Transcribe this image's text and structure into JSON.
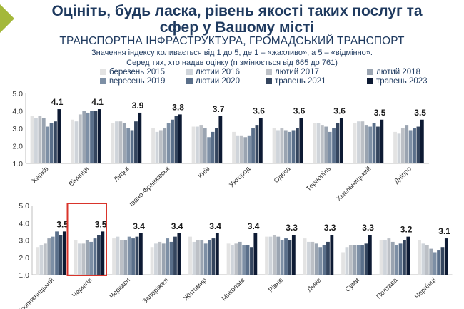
{
  "page": {
    "title": "Оцініть, будь ласка, рівень якості таких послуг та сфер у Вашому місті",
    "subtitle": "ТРАНСПОРТНА ІНФРАСТРУКТУРА, ГРОМАДСЬКИЙ ТРАНСПОРТ",
    "note_line1": "Значення індексу коливається від 1 до 5, де 1 – «жахливо», а 5 – «відмінно».",
    "note_line2": "Серед тих, хто надав оцінку (n змінюється від 665 до 761)",
    "accent_color": "#a4b83a",
    "highlight_color": "#d9342b"
  },
  "chart_data": {
    "type": "bar",
    "ylim": [
      1.0,
      5.0
    ],
    "yticks": [
      "1.0",
      "2.0",
      "3.0",
      "4.0",
      "5.0"
    ],
    "grid": false,
    "legend_position": "top",
    "highlighted_city": "Чернігів",
    "series": [
      {
        "name": "березень 2015",
        "color": "#e3e3e3"
      },
      {
        "name": "лютий 2016",
        "color": "#cfd4da"
      },
      {
        "name": "лютий 2017",
        "color": "#bcc0c6"
      },
      {
        "name": "лютий 2018",
        "color": "#9aa4b1"
      },
      {
        "name": "вересень 2019",
        "color": "#7d8fa5"
      },
      {
        "name": "лютий 2020",
        "color": "#5a6f8a"
      },
      {
        "name": "травень 2021",
        "color": "#34455e"
      },
      {
        "name": "травень 2023",
        "color": "#0d1a33"
      }
    ],
    "rows": [
      {
        "cities": [
          {
            "name": "Харків",
            "label": "4.1",
            "values": [
              3.7,
              3.6,
              3.7,
              3.6,
              3.1,
              3.3,
              3.4,
              4.1
            ]
          },
          {
            "name": "Вінниця",
            "label": "4.1",
            "values": [
              3.5,
              3.4,
              3.8,
              4.0,
              3.9,
              4.0,
              4.0,
              4.1
            ]
          },
          {
            "name": "Луцьк",
            "label": "3.9",
            "values": [
              3.3,
              3.4,
              3.4,
              3.3,
              3.0,
              2.9,
              3.4,
              3.9
            ]
          },
          {
            "name": "Івано-Франківськ",
            "label": "3.8",
            "values": [
              3.0,
              2.8,
              2.9,
              3.0,
              3.3,
              3.5,
              3.7,
              3.8
            ]
          },
          {
            "name": "Київ",
            "label": "3.7",
            "values": [
              3.1,
              3.1,
              3.2,
              3.0,
              2.5,
              2.8,
              3.0,
              3.7
            ]
          },
          {
            "name": "Ужгород",
            "label": "3.6",
            "values": [
              2.8,
              2.6,
              2.6,
              2.5,
              2.6,
              3.0,
              3.2,
              3.6
            ]
          },
          {
            "name": "Одеса",
            "label": "3.6",
            "values": [
              3.0,
              2.9,
              3.0,
              2.9,
              2.8,
              2.9,
              3.0,
              3.6
            ]
          },
          {
            "name": "Тернопіль",
            "label": "3.6",
            "values": [
              3.3,
              3.3,
              3.2,
              3.1,
              2.8,
              3.0,
              3.3,
              3.6
            ]
          },
          {
            "name": "Хмельницький",
            "label": "3.5",
            "values": [
              3.3,
              3.4,
              3.4,
              3.2,
              3.1,
              3.3,
              3.1,
              3.5
            ]
          },
          {
            "name": "Дніпро",
            "label": "3.5",
            "values": [
              2.8,
              2.7,
              3.0,
              3.2,
              2.9,
              3.0,
              3.1,
              3.5
            ]
          }
        ]
      },
      {
        "cities": [
          {
            "name": "Кропивницький",
            "label": "3.5",
            "values": [
              2.6,
              2.7,
              2.8,
              3.1,
              3.2,
              3.5,
              3.3,
              3.5
            ]
          },
          {
            "name": "Чернігів",
            "label": "3.5",
            "values": [
              3.0,
              2.8,
              2.8,
              3.0,
              2.9,
              3.1,
              3.3,
              3.5
            ]
          },
          {
            "name": "Черкаси",
            "label": "3.4",
            "values": [
              3.1,
              3.2,
              3.0,
              3.0,
              3.2,
              3.1,
              3.2,
              3.4
            ]
          },
          {
            "name": "Запоріжжя",
            "label": "3.4",
            "values": [
              2.6,
              2.8,
              2.9,
              2.8,
              3.1,
              2.9,
              3.2,
              3.4
            ]
          },
          {
            "name": "Житомир",
            "label": "3.4",
            "values": [
              3.2,
              2.9,
              3.0,
              3.0,
              2.8,
              3.0,
              3.1,
              3.4
            ]
          },
          {
            "name": "Миколаїв",
            "label": "3.4",
            "values": [
              2.8,
              2.7,
              2.8,
              2.9,
              2.7,
              2.7,
              2.6,
              3.4
            ]
          },
          {
            "name": "Рівне",
            "label": "3.3",
            "values": [
              3.2,
              3.2,
              3.3,
              3.2,
              3.0,
              3.1,
              3.0,
              3.3
            ]
          },
          {
            "name": "Львів",
            "label": "3.3",
            "values": [
              3.1,
              2.9,
              2.9,
              2.8,
              2.6,
              2.7,
              2.9,
              3.3
            ]
          },
          {
            "name": "Суми",
            "label": "3.3",
            "values": [
              2.3,
              2.6,
              2.7,
              2.7,
              2.7,
              2.7,
              2.8,
              3.3
            ]
          },
          {
            "name": "Полтава",
            "label": "3.2",
            "values": [
              3.0,
              3.0,
              3.1,
              2.9,
              2.7,
              2.8,
              3.0,
              3.2
            ]
          },
          {
            "name": "Чернівці",
            "label": "3.1",
            "values": [
              3.0,
              2.8,
              2.7,
              2.5,
              2.3,
              2.4,
              2.6,
              3.1
            ]
          }
        ]
      }
    ]
  }
}
